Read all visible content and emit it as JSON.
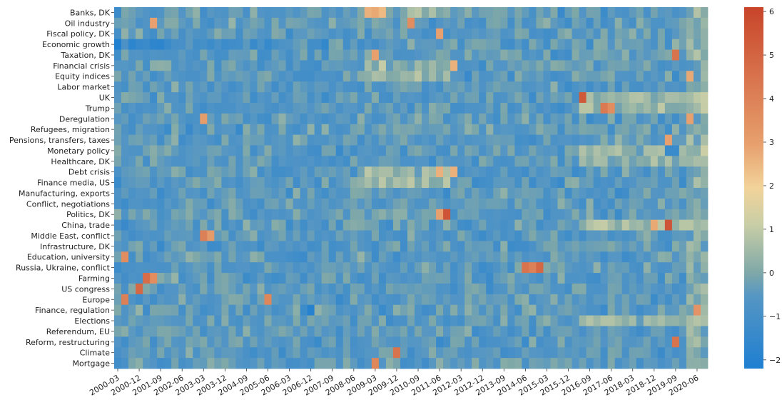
{
  "chart_data": {
    "type": "heatmap",
    "rows": [
      "Banks, DK",
      "Oil industry",
      "Fiscal policy, DK",
      "Economic growth",
      "Taxation, DK",
      "Financial crisis",
      "Equity indices",
      "Labor market",
      "UK",
      "Trump",
      "Deregulation",
      "Refugees, migration",
      "Pensions, transfers, taxes",
      "Monetary policy",
      "Healthcare, DK",
      "Debt crisis",
      "Finance media, US",
      "Manufacturing, exports",
      "Conflict, negotiations",
      "Politics, DK",
      "China, trade",
      "Middle East, conflict",
      "Infrastructure, DK",
      "Education, university",
      "Russia, Ukraine, conflict",
      "Farming",
      "US congress",
      "Europe",
      "Finance, regulation",
      "Elections",
      "Referendum, EU",
      "Reform, restructuring",
      "Climate",
      "Mortgage"
    ],
    "x_tick_labels": [
      "2000-03",
      "2000-12",
      "2001-09",
      "2002-06",
      "2003-03",
      "2003-12",
      "2004-09",
      "2005-06",
      "2006-03",
      "2006-12",
      "2007-09",
      "2008-06",
      "2009-03",
      "2009-12",
      "2010-09",
      "2011-06",
      "2012-03",
      "2012-12",
      "2013-09",
      "2014-06",
      "2015-03",
      "2015-12",
      "2016-09",
      "2017-06",
      "2018-03",
      "2018-12",
      "2019-09",
      "2020-06"
    ],
    "x_start": "2000-03",
    "x_end": "2020-09",
    "x_step_months": 3,
    "colorbar": {
      "min": -2.2,
      "max": 6.1,
      "ticks": [
        -2,
        -1,
        0,
        1,
        2,
        3,
        4,
        5,
        6
      ]
    },
    "colors": {
      "low": "#1f7fd1",
      "mid": "#7fa8a8",
      "warm": "#f2d39a",
      "high": "#c8442a"
    },
    "hotspots": [
      {
        "row": "Economic growth",
        "x": "2000-03",
        "value": -2.1
      },
      {
        "row": "Economic growth",
        "x": "2000-09",
        "value": -1.8
      },
      {
        "row": "Economic growth",
        "x": "2000-12",
        "value": -1.5
      },
      {
        "row": "Banks, DK",
        "x": "2008-12",
        "value": 2.8
      },
      {
        "row": "Banks, DK",
        "x": "2009-03",
        "value": 3.0
      },
      {
        "row": "Banks, DK",
        "x": "2009-06",
        "value": 2.6
      },
      {
        "row": "Oil industry",
        "x": "2001-06",
        "value": 3.2
      },
      {
        "row": "Oil industry",
        "x": "2010-06",
        "value": 3.8
      },
      {
        "row": "Fiscal policy, DK",
        "x": "2011-06",
        "value": 3.2
      },
      {
        "row": "Financial crisis",
        "x": "2011-12",
        "value": 2.8
      },
      {
        "row": "Taxation, DK",
        "x": "2009-03",
        "value": 3.2
      },
      {
        "row": "Taxation, DK",
        "x": "2019-09",
        "value": 4.6
      },
      {
        "row": "UK",
        "x": "2016-06",
        "value": 5.4
      },
      {
        "row": "Trump",
        "x": "2017-03",
        "value": 4.4
      },
      {
        "row": "Trump",
        "x": "2017-06",
        "value": 3.8
      },
      {
        "row": "Deregulation",
        "x": "2003-03",
        "value": 3.3
      },
      {
        "row": "Deregulation",
        "x": "2020-03",
        "value": 3.2
      },
      {
        "row": "Pensions, transfers, taxes",
        "x": "2019-06",
        "value": 3.2
      },
      {
        "row": "Politics, DK",
        "x": "2011-09",
        "value": 5.6
      },
      {
        "row": "Politics, DK",
        "x": "2011-06",
        "value": 3.2
      },
      {
        "row": "China, trade",
        "x": "2019-06",
        "value": 5.6
      },
      {
        "row": "China, trade",
        "x": "2018-12",
        "value": 3.0
      },
      {
        "row": "Middle East, conflict",
        "x": "2003-03",
        "value": 4.2
      },
      {
        "row": "Middle East, conflict",
        "x": "2003-06",
        "value": 3.4
      },
      {
        "row": "Education, university",
        "x": "2000-06",
        "value": 3.8
      },
      {
        "row": "Russia, Ukraine, conflict",
        "x": "2014-06",
        "value": 4.6
      },
      {
        "row": "Russia, Ukraine, conflict",
        "x": "2014-09",
        "value": 4.2
      },
      {
        "row": "Russia, Ukraine, conflict",
        "x": "2014-12",
        "value": 5.0
      },
      {
        "row": "Farming",
        "x": "2001-03",
        "value": 4.8
      },
      {
        "row": "Farming",
        "x": "2001-06",
        "value": 3.8
      },
      {
        "row": "US congress",
        "x": "2000-12",
        "value": 5.0
      },
      {
        "row": "Europe",
        "x": "2000-06",
        "value": 4.2
      },
      {
        "row": "Europe",
        "x": "2005-06",
        "value": 4.0
      },
      {
        "row": "Finance, regulation",
        "x": "2006-12",
        "value": -2.0
      },
      {
        "row": "Finance, regulation",
        "x": "2020-06",
        "value": 3.6
      },
      {
        "row": "Climate",
        "x": "2009-12",
        "value": 4.6
      },
      {
        "row": "Mortgage",
        "x": "2009-03",
        "value": 4.0
      },
      {
        "row": "Reform, restructuring",
        "x": "2019-09",
        "value": 4.6
      },
      {
        "row": "Monetary policy",
        "x": "2019-06",
        "value": -1.4
      },
      {
        "row": "Monetary policy",
        "x": "2019-09",
        "value": -1.4
      },
      {
        "row": "Equity indices",
        "x": "2019-09",
        "value": -1.3
      },
      {
        "row": "Equity indices",
        "x": "2020-03",
        "value": 3.0
      },
      {
        "row": "Debt crisis",
        "x": "2011-06",
        "value": 2.8
      },
      {
        "row": "Debt crisis",
        "x": "2011-12",
        "value": 2.8
      }
    ]
  }
}
